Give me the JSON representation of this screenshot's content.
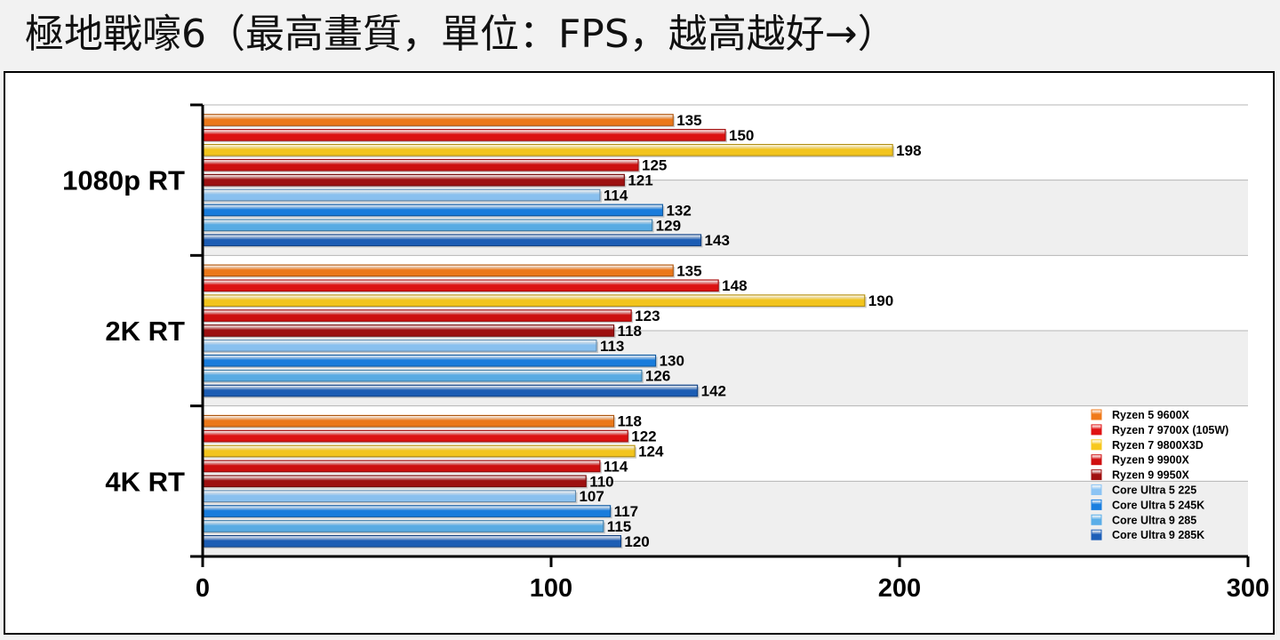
{
  "title": "極地戰嚎6（最高畫質，單位：FPS，越高越好→）",
  "chart_data": {
    "type": "bar",
    "orientation": "horizontal",
    "title": "極地戰嚎6（最高畫質，單位：FPS，越高越好→）",
    "categories": [
      "1080p RT",
      "2K RT",
      "4K RT"
    ],
    "xlim": [
      0,
      300
    ],
    "xticks": [
      0,
      100,
      200,
      300
    ],
    "grid": true,
    "legend_position": "right",
    "series": [
      {
        "name": "Ryzen 5 9600X",
        "color": "#f07a1a",
        "values": [
          135,
          135,
          118
        ]
      },
      {
        "name": "Ryzen 7 9700X (105W)",
        "color": "#e01212",
        "values": [
          150,
          148,
          122
        ]
      },
      {
        "name": "Ryzen 7 9800X3D",
        "color": "#f7c81e",
        "values": [
          198,
          190,
          124
        ]
      },
      {
        "name": "Ryzen 9 9900X",
        "color": "#d01010",
        "values": [
          125,
          123,
          114
        ]
      },
      {
        "name": "Ryzen 9 9950X",
        "color": "#a01010",
        "values": [
          121,
          118,
          110
        ]
      },
      {
        "name": "Core Ultra 5 225",
        "color": "#8cc4f4",
        "values": [
          114,
          113,
          107
        ]
      },
      {
        "name": "Core Ultra 5 245K",
        "color": "#1a7fe0",
        "values": [
          132,
          130,
          117
        ]
      },
      {
        "name": "Core Ultra 9 285",
        "color": "#5aaee8",
        "values": [
          129,
          126,
          115
        ]
      },
      {
        "name": "Core Ultra 9 285K",
        "color": "#1d5fb8",
        "values": [
          143,
          142,
          120
        ]
      }
    ]
  }
}
